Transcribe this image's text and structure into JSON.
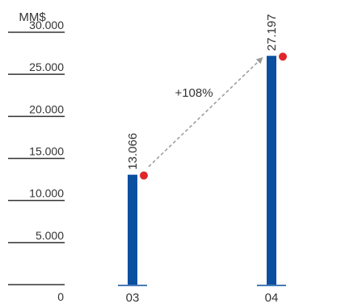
{
  "colors": {
    "bar": "#0a4fa0",
    "marker": "#e0262b",
    "axis": "#333333",
    "arrow": "#999999"
  },
  "chart_data": {
    "type": "bar",
    "ylabel": "MM$",
    "ylim": [
      0,
      30000
    ],
    "yticks": [
      0,
      5000,
      10000,
      15000,
      20000,
      25000,
      30000
    ],
    "ytick_labels": [
      "0",
      "5.000",
      "10.000",
      "15.000",
      "20.000",
      "25.000",
      "30.000"
    ],
    "categories": [
      "03",
      "04"
    ],
    "values": [
      13066,
      27197
    ],
    "value_labels": [
      "13.066",
      "27.197"
    ],
    "annotation": "+108%",
    "grid": false
  }
}
